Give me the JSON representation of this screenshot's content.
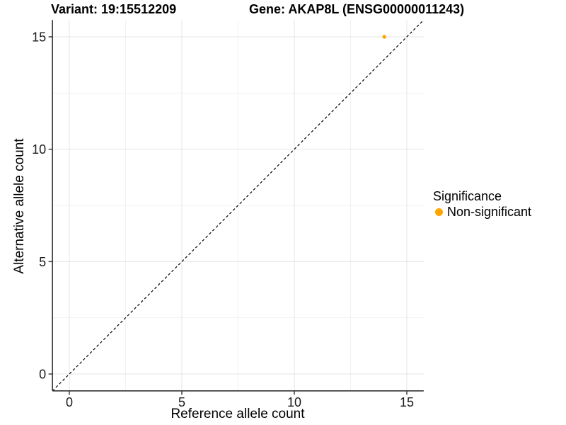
{
  "figure": {
    "background": "#FFFFFF"
  },
  "titles": {
    "variant": "Variant: 19:15512209",
    "gene": "Gene: AKAP8L (ENSG00000011243)"
  },
  "axes": {
    "x": {
      "label": "Reference allele count",
      "tick_labels": [
        "0",
        "5",
        "10",
        "15"
      ]
    },
    "y": {
      "label": "Alternative allele count",
      "tick_labels": [
        "0",
        "5",
        "10",
        "15"
      ]
    }
  },
  "legend": {
    "title": "Significance",
    "items": [
      {
        "label": "Non-significant",
        "color": "#FFA500",
        "marker": "circle-icon"
      }
    ]
  },
  "chart_data": {
    "type": "scatter",
    "title": "Variant: 19:15512209 | Gene: AKAP8L (ENSG00000011243)",
    "xlabel": "Reference allele count",
    "ylabel": "Alternative allele count",
    "xlim": [
      -0.75,
      15.75
    ],
    "ylim": [
      -0.75,
      15.75
    ],
    "x_ticks": [
      0,
      5,
      10,
      15
    ],
    "y_ticks": [
      0,
      5,
      10,
      15
    ],
    "grid": "major+minor",
    "legend_position": "right",
    "series": [
      {
        "name": "Non-significant",
        "color": "#FFA500",
        "points": [
          [
            14,
            15
          ]
        ]
      }
    ],
    "annotations": [
      {
        "type": "identity-line",
        "from": [
          -0.75,
          -0.75
        ],
        "to": [
          15.75,
          15.75
        ],
        "style": "dashed",
        "color": "#000000"
      }
    ]
  },
  "colors": {
    "grid_major": "#E4E4E4",
    "grid_minor": "#F1F1F1",
    "axis_line": "#333333",
    "tick_text": "#1A1A1A",
    "point": "#FFA500",
    "dashed_line": "#000000"
  }
}
